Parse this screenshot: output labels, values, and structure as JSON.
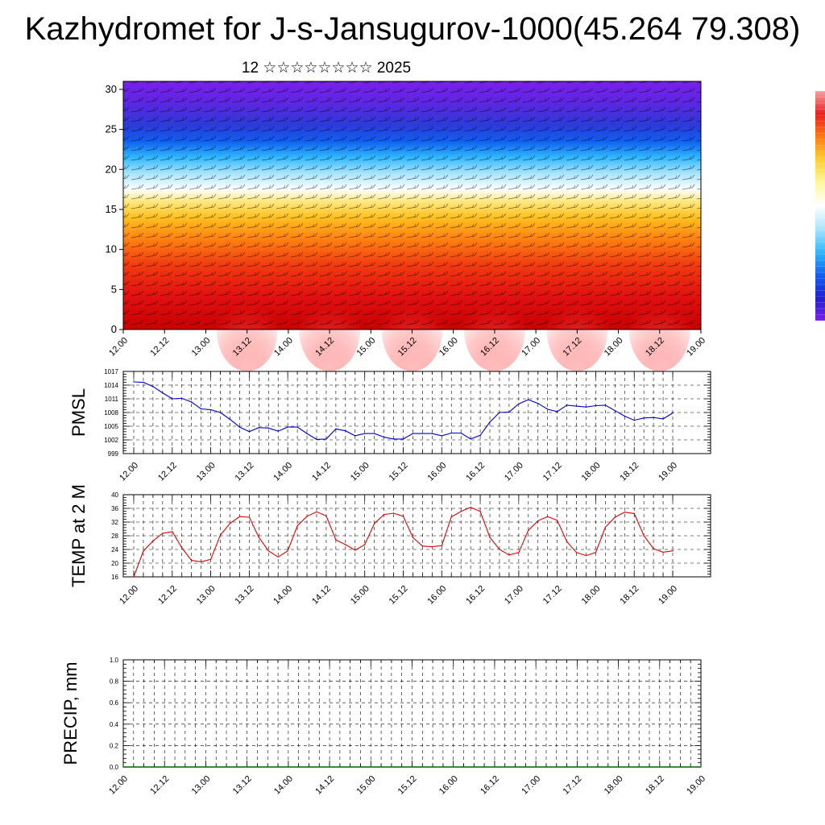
{
  "page": {
    "title": "Kazhydromet for J-s-Jansugurov-1000(45.264 79.308)",
    "subtitle": "12 ☆☆☆☆☆☆☆☆ 2025"
  },
  "colorbar": {
    "colors": [
      "#f5a0a0",
      "#e82020",
      "#ff7a10",
      "#ffd030",
      "#fff6a0",
      "#ffffff",
      "#a8e4ff",
      "#30b8ff",
      "#1060f0",
      "#2020d0",
      "#7a20e8"
    ]
  },
  "chart_data": [
    {
      "type": "heatmap",
      "name": "cross-section",
      "x_ticks": [
        "12.00",
        "12.12",
        "13.00",
        "13.12",
        "14.00",
        "14.12",
        "15.00",
        "15.12",
        "16.00",
        "16.12",
        "17.00",
        "17.12",
        "18.00",
        "18.12",
        "19.00"
      ],
      "y_ticks": [
        0,
        5,
        10,
        15,
        20,
        25,
        30
      ],
      "ylim": [
        0,
        31
      ],
      "bands": [
        {
          "y": 0,
          "color": "#c80000"
        },
        {
          "y": 4,
          "color": "#e01010"
        },
        {
          "y": 8,
          "color": "#f03a10"
        },
        {
          "y": 11,
          "color": "#ff7a10"
        },
        {
          "y": 14,
          "color": "#ffc020"
        },
        {
          "y": 16,
          "color": "#ffe880"
        },
        {
          "y": 17.5,
          "color": "#ffffff"
        },
        {
          "y": 19.5,
          "color": "#a8e4ff"
        },
        {
          "y": 21.5,
          "color": "#30b8ff"
        },
        {
          "y": 23.5,
          "color": "#1060f0"
        },
        {
          "y": 25.5,
          "color": "#2c3ad8"
        },
        {
          "y": 28,
          "color": "#5828e0"
        },
        {
          "y": 31,
          "color": "#7a20e8"
        }
      ],
      "warm_spots": [
        13.5,
        14.5,
        15.5,
        16.5,
        17.5,
        18.5
      ]
    },
    {
      "type": "line",
      "name": "pmsl",
      "ylabel": "PMSL",
      "ylim": [
        999,
        1017
      ],
      "y_ticks": [
        999,
        1002,
        1005,
        1008,
        1011,
        1014,
        1017
      ],
      "x_ticks": [
        "12.00",
        "12.12",
        "13.00",
        "13.12",
        "14.00",
        "14.12",
        "15.00",
        "15.12",
        "16.00",
        "16.12",
        "17.00",
        "17.12",
        "18.00",
        "18.12",
        "19.00"
      ],
      "color": "#0000cc",
      "x": [
        12.0,
        12.125,
        12.25,
        12.375,
        12.5,
        12.625,
        12.75,
        12.875,
        13.0,
        13.125,
        13.25,
        13.375,
        13.5,
        13.625,
        13.75,
        13.875,
        14.0,
        14.125,
        14.25,
        14.375,
        14.5,
        14.625,
        14.75,
        14.875,
        15.0,
        15.125,
        15.25,
        15.375,
        15.5,
        15.625,
        15.75,
        15.875,
        16.0,
        16.125,
        16.25,
        16.375,
        16.5,
        16.625,
        16.75,
        16.875,
        17.0,
        17.125,
        17.25,
        17.375,
        17.5,
        17.625,
        17.75,
        17.875,
        18.0,
        18.125,
        18.25,
        18.375,
        18.5,
        18.625,
        18.75,
        18.875,
        19.0
      ],
      "values": [
        1014.7,
        1014.6,
        1013.7,
        1012.3,
        1011.0,
        1011.1,
        1010.3,
        1008.8,
        1008.6,
        1008.0,
        1006.5,
        1004.8,
        1003.8,
        1004.7,
        1004.6,
        1003.9,
        1004.8,
        1004.8,
        1003.4,
        1002.1,
        1002.2,
        1004.4,
        1004.0,
        1002.9,
        1003.4,
        1003.4,
        1002.6,
        1002.2,
        1002.2,
        1003.4,
        1003.4,
        1003.4,
        1002.9,
        1003.5,
        1003.5,
        1002.2,
        1003.0,
        1005.9,
        1008.0,
        1008.1,
        1009.9,
        1010.8,
        1010.0,
        1008.7,
        1008.2,
        1009.6,
        1009.4,
        1009.2,
        1009.5,
        1009.6,
        1008.4,
        1007.2,
        1006.3,
        1006.8,
        1006.9,
        1006.6,
        1007.9
      ]
    },
    {
      "type": "line",
      "name": "temp2m",
      "ylabel": "TEMP at 2 M",
      "ylim": [
        16,
        40
      ],
      "y_ticks": [
        16,
        20,
        24,
        28,
        32,
        36,
        40
      ],
      "x_ticks": [
        "12.00",
        "12.12",
        "13.00",
        "13.12",
        "14.00",
        "14.12",
        "15.00",
        "15.12",
        "16.00",
        "16.12",
        "17.00",
        "17.12",
        "18.00",
        "18.12",
        "19.00"
      ],
      "color": "#e00000",
      "x": [
        12.0,
        12.125,
        12.25,
        12.375,
        12.5,
        12.625,
        12.75,
        12.875,
        13.0,
        13.125,
        13.25,
        13.375,
        13.5,
        13.625,
        13.75,
        13.875,
        14.0,
        14.125,
        14.25,
        14.375,
        14.5,
        14.625,
        14.75,
        14.875,
        15.0,
        15.125,
        15.25,
        15.375,
        15.5,
        15.625,
        15.75,
        15.875,
        16.0,
        16.125,
        16.25,
        16.375,
        16.5,
        16.625,
        16.75,
        16.875,
        17.0,
        17.125,
        17.25,
        17.375,
        17.5,
        17.625,
        17.75,
        17.875,
        18.0,
        18.125,
        18.25,
        18.375,
        18.5,
        18.625,
        18.75,
        18.875,
        19.0
      ],
      "values": [
        16.0,
        23.5,
        26.5,
        28.7,
        29.2,
        24.5,
        20.8,
        20.4,
        21.1,
        28.2,
        31.6,
        33.6,
        33.4,
        27.5,
        23.6,
        21.8,
        23.6,
        30.9,
        33.7,
        35.0,
        33.8,
        26.8,
        25.4,
        23.8,
        25.4,
        31.6,
        34.2,
        34.6,
        33.7,
        27.5,
        25.0,
        24.8,
        25.1,
        33.5,
        35.1,
        36.3,
        35.1,
        27.5,
        24.0,
        22.4,
        23.1,
        29.6,
        32.4,
        33.6,
        32.5,
        26.3,
        23.1,
        22.2,
        23.1,
        30.5,
        33.4,
        34.9,
        34.5,
        28.0,
        24.2,
        23.2,
        23.6
      ]
    },
    {
      "type": "line",
      "name": "precip",
      "ylabel": "PRECIP, mm",
      "ylim": [
        0.0,
        1.0
      ],
      "y_ticks": [
        "0.0",
        "0.2",
        "0.4",
        "0.6",
        "0.8",
        "1.0"
      ],
      "x_ticks": [
        "12.00",
        "12.12",
        "13.00",
        "13.12",
        "14.00",
        "14.12",
        "15.00",
        "15.12",
        "16.00",
        "16.12",
        "17.00",
        "17.12",
        "18.00",
        "18.12",
        "19.00"
      ],
      "color": "#006400",
      "x": [
        12.0,
        19.0
      ],
      "values": [
        0.0,
        0.0
      ]
    }
  ]
}
